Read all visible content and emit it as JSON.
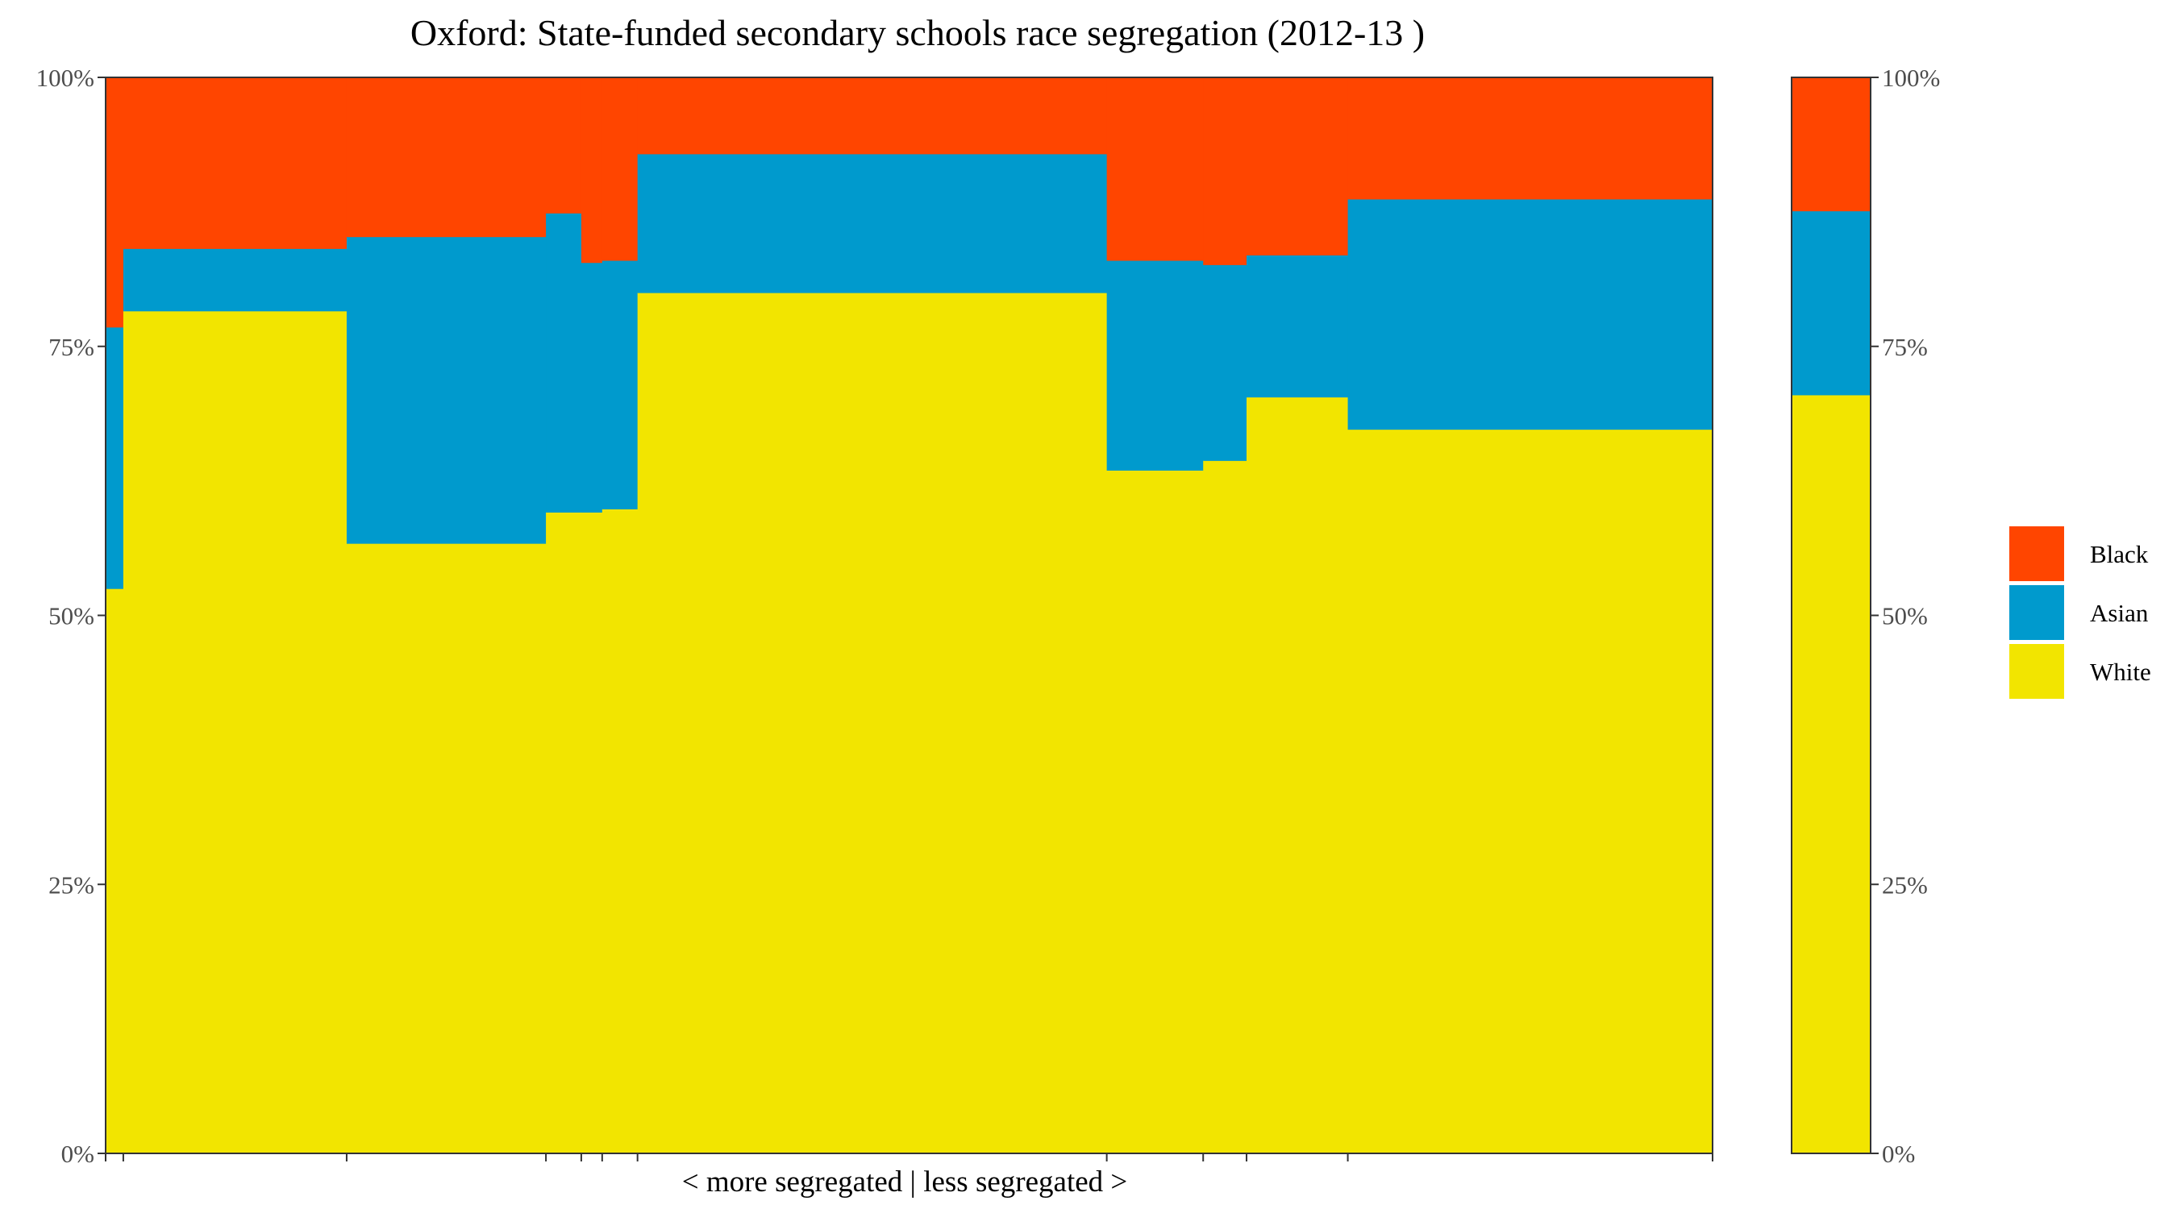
{
  "chart_data": {
    "type": "bar",
    "title": "Oxford: State-funded secondary schools race segregation (2012-13 )",
    "xlabel": "< more segregated | less segregated >",
    "ylabel": "",
    "ylim": [
      0,
      1
    ],
    "y_ticks": [
      "0%",
      "25%",
      "50%",
      "75%",
      "100%"
    ],
    "y_tick_values": [
      0,
      0.25,
      0.5,
      0.75,
      1.0
    ],
    "y_axis_both_sides": true,
    "grid": false,
    "legend_position": "right",
    "stack_order": [
      "White",
      "Asian",
      "Black"
    ],
    "legend": [
      {
        "name": "Black",
        "color": "#FF4500"
      },
      {
        "name": "Asian",
        "color": "#009ACD"
      },
      {
        "name": "White",
        "color": "#F2E500"
      }
    ],
    "x_range": [
      0,
      1
    ],
    "schools": [
      {
        "x_start": 0.0,
        "x_end": 0.011,
        "white": 0.525,
        "asian": 0.243,
        "black": 0.232
      },
      {
        "x_start": 0.011,
        "x_end": 0.15,
        "white": 0.783,
        "asian": 0.058,
        "black": 0.159
      },
      {
        "x_start": 0.15,
        "x_end": 0.274,
        "white": 0.567,
        "asian": 0.285,
        "black": 0.148
      },
      {
        "x_start": 0.274,
        "x_end": 0.296,
        "white": 0.596,
        "asian": 0.278,
        "black": 0.126
      },
      {
        "x_start": 0.296,
        "x_end": 0.309,
        "white": 0.596,
        "asian": 0.232,
        "black": 0.172
      },
      {
        "x_start": 0.309,
        "x_end": 0.331,
        "white": 0.599,
        "asian": 0.231,
        "black": 0.17
      },
      {
        "x_start": 0.331,
        "x_end": 0.623,
        "white": 0.8,
        "asian": 0.129,
        "black": 0.071
      },
      {
        "x_start": 0.623,
        "x_end": 0.683,
        "white": 0.635,
        "asian": 0.195,
        "black": 0.17
      },
      {
        "x_start": 0.683,
        "x_end": 0.71,
        "white": 0.644,
        "asian": 0.182,
        "black": 0.174
      },
      {
        "x_start": 0.71,
        "x_end": 0.773,
        "white": 0.703,
        "asian": 0.132,
        "black": 0.165
      },
      {
        "x_start": 0.773,
        "x_end": 1.0,
        "white": 0.673,
        "asian": 0.214,
        "black": 0.113
      }
    ],
    "overall": {
      "white": 0.705,
      "asian": 0.171,
      "black": 0.124
    }
  }
}
